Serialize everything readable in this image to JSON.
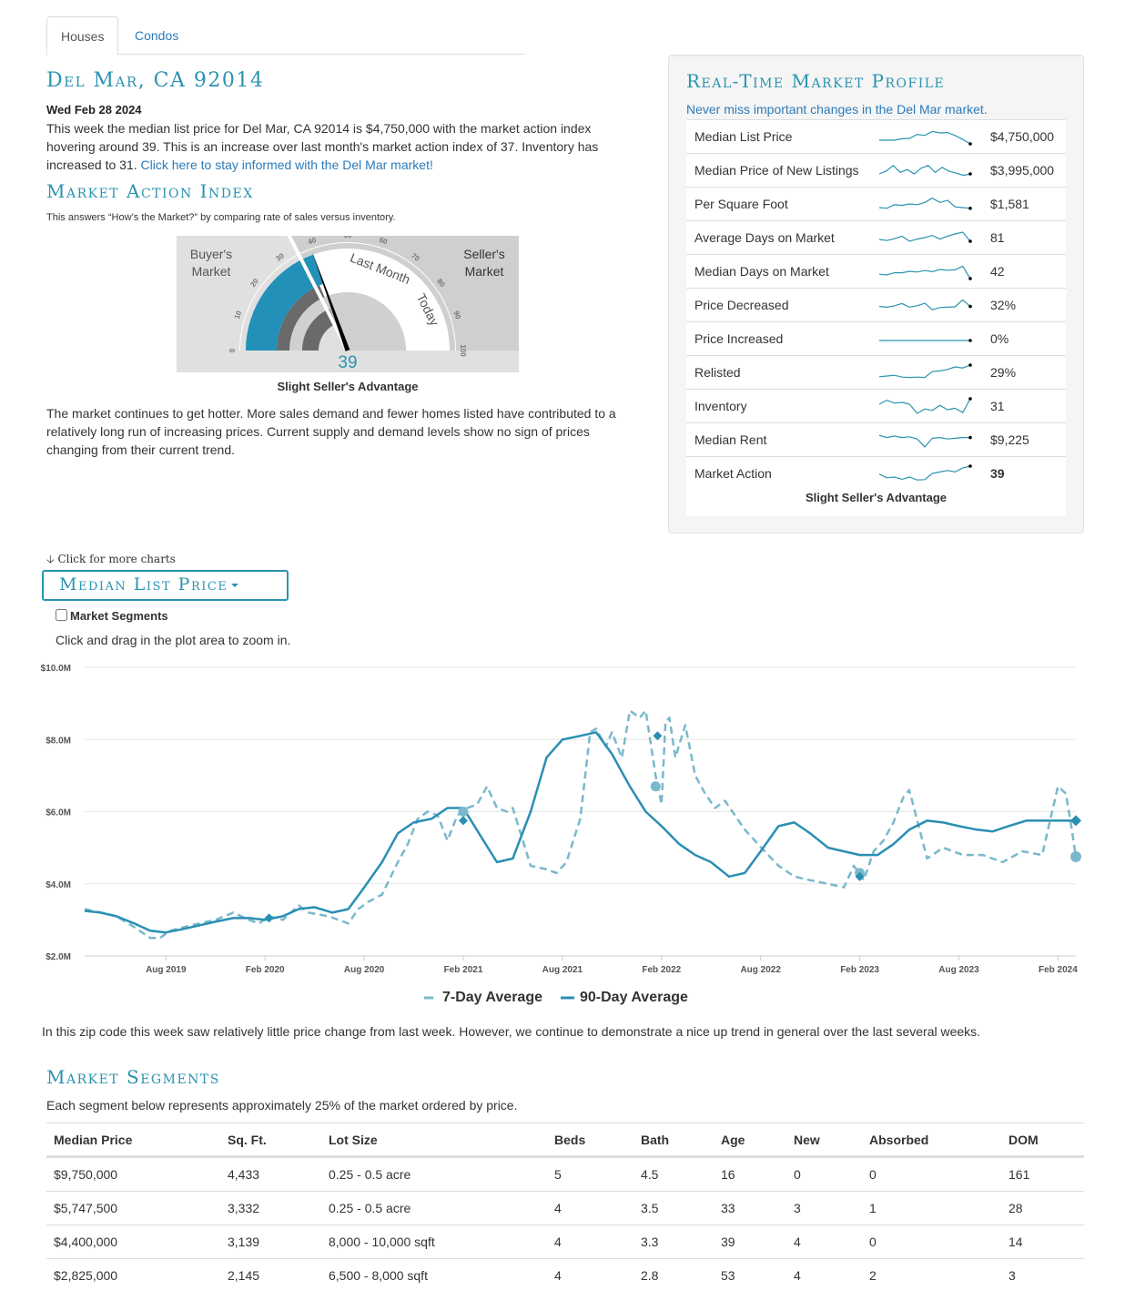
{
  "tabs": [
    {
      "label": "Houses",
      "active": true
    },
    {
      "label": "Condos",
      "active": false
    }
  ],
  "header": {
    "title": "Del Mar, CA 92014",
    "date": "Wed Feb 28 2024",
    "summary": "This week the median list price for Del Mar, CA 92014 is $4,750,000 with the market action index hovering around 39. This is an increase over last month's market action index of 37. Inventory has increased to 31. ",
    "summary_link": "Click here to stay informed with the Del Mar market!"
  },
  "market_action": {
    "title": "Market Action Index",
    "subtitle": "This answers “How’s the Market?” by comparing rate of sales versus inventory.",
    "buyers_label_1": "Buyer's",
    "buyers_label_2": "Market",
    "sellers_label_1": "Seller's",
    "sellers_label_2": "Market",
    "last_month_label": "Last Month",
    "today_label": "Today",
    "ticks": [
      "0",
      "10",
      "20",
      "30",
      "40",
      "50",
      "60",
      "70",
      "80",
      "90",
      "100"
    ],
    "value": 39,
    "value_label": "39",
    "last_month_value": 37,
    "caption": "Slight Seller's Advantage",
    "analysis": "The market continues to get hotter. More sales demand and fewer homes listed have contributed to a relatively long run of increasing prices. Current supply and demand levels show no sign of prices changing from their current trend."
  },
  "profile": {
    "title": "Real-Time Market Profile",
    "link": "Never miss important changes in the Del Mar market.",
    "rows": [
      {
        "label": "Median List Price",
        "value": "$4,750,000",
        "spark": [
          3,
          3,
          3,
          2.6,
          2.5,
          1.4,
          1.7,
          0.6,
          1,
          0.9,
          1.7,
          2.8,
          4
        ]
      },
      {
        "label": "Median Price of New Listings",
        "value": "$3,995,000",
        "spark": [
          3,
          2.2,
          0.7,
          2.6,
          1.8,
          3,
          1.4,
          0.7,
          2.6,
          1.2,
          2.3,
          2.8,
          3.4,
          3
        ]
      },
      {
        "label": "Per Square Foot",
        "value": "$1,581",
        "spark": [
          3,
          3.2,
          2.2,
          2.4,
          2,
          2.2,
          1.6,
          0.4,
          1.6,
          1,
          2.8,
          3,
          3.2
        ]
      },
      {
        "label": "Average Days on Market",
        "value": "81",
        "spark": [
          2.5,
          2.8,
          2.3,
          1.6,
          3,
          2.4,
          2,
          1.4,
          2.4,
          1.6,
          1,
          0.5,
          3
        ]
      },
      {
        "label": "Median Days on Market",
        "value": "42",
        "spark": [
          2.8,
          3,
          2.4,
          2.4,
          2,
          2.2,
          1.8,
          2.1,
          1.5,
          1.7,
          1.6,
          0.6,
          4
        ]
      },
      {
        "label": "Price Decreased",
        "value": "32%",
        "spark": [
          2.4,
          2.6,
          2.2,
          1.6,
          2.6,
          2.2,
          1.5,
          3.3,
          2.7,
          2.6,
          2.5,
          0.6,
          2.4
        ]
      },
      {
        "label": "Price Increased",
        "value": "0%",
        "spark": [
          2.5,
          2.5,
          2.5,
          2.5,
          2.5,
          2.5,
          2.5,
          2.5,
          2.5,
          2.5,
          2.5,
          2.5,
          2.5
        ]
      },
      {
        "label": "Relisted",
        "value": "29%",
        "spark": [
          3.2,
          3,
          2.8,
          3.3,
          3.4,
          3.3,
          3.4,
          1.8,
          1.6,
          1.2,
          0.5,
          0.8,
          0
        ]
      },
      {
        "label": "Inventory",
        "value": "31",
        "spark": [
          1.5,
          0.4,
          1.2,
          1,
          1.5,
          4,
          2.8,
          3.2,
          1.8,
          3,
          2.6,
          3.8,
          0
        ]
      },
      {
        "label": "Median Rent",
        "value": "$9,225",
        "spark": [
          0.8,
          1.4,
          1,
          1.4,
          1.2,
          1.8,
          4,
          1.6,
          1.4,
          1.8,
          1.6,
          1.4,
          1.4
        ]
      },
      {
        "label": "Market Action",
        "value": "39",
        "spark": [
          2.2,
          3.2,
          3,
          3.6,
          3,
          3.8,
          3.7,
          2,
          1.6,
          1.2,
          1.6,
          0.5,
          0
        ]
      }
    ],
    "caption": "Slight Seller's Advantage"
  },
  "chart_section": {
    "more_label": "Click for more charts",
    "selector_label": "Median List Price",
    "segments_toggle_label": "Market Segments",
    "zoom_hint": "Click and drag in the plot area to zoom in.",
    "note": "In this zip code this week saw relatively little price change from last week. However, we continue to demonstrate a nice up trend in general over the last several weeks."
  },
  "chart_data": {
    "type": "line",
    "ylim": [
      2,
      10
    ],
    "y_ticks": [
      "$2.0M",
      "$4.0M",
      "$6.0M",
      "$8.0M",
      "$10.0M"
    ],
    "y_tick_values": [
      2,
      4,
      6,
      8,
      10
    ],
    "x_ticks": [
      "Aug 2019",
      "Feb 2020",
      "Aug 2020",
      "Feb 2021",
      "Aug 2021",
      "Feb 2022",
      "Aug 2022",
      "Feb 2023",
      "Aug 2023",
      "Feb 2024"
    ],
    "x_tick_positions": [
      2019.58,
      2020.08,
      2020.58,
      2021.08,
      2021.58,
      2022.08,
      2022.58,
      2023.08,
      2023.58,
      2024.08
    ],
    "x_range": [
      2019.17,
      2024.17
    ],
    "series": [
      {
        "name": "7-Day Average",
        "style": "dashed",
        "color": "#7ab8cc",
        "x": [
          2019.17,
          2019.25,
          2019.33,
          2019.42,
          2019.5,
          2019.55,
          2019.6,
          2019.67,
          2019.75,
          2019.83,
          2019.92,
          2020.0,
          2020.05,
          2020.1,
          2020.17,
          2020.25,
          2020.3,
          2020.4,
          2020.5,
          2020.55,
          2020.6,
          2020.67,
          2020.75,
          2020.8,
          2020.85,
          2020.9,
          2020.95,
          2021.0,
          2021.05,
          2021.1,
          2021.15,
          2021.2,
          2021.25,
          2021.3,
          2021.33,
          2021.42,
          2021.5,
          2021.55,
          2021.6,
          2021.67,
          2021.72,
          2021.75,
          2021.8,
          2021.83,
          2021.88,
          2021.92,
          2021.97,
          2022.0,
          2022.05,
          2022.08,
          2022.1,
          2022.12,
          2022.15,
          2022.2,
          2022.25,
          2022.3,
          2022.35,
          2022.4,
          2022.5,
          2022.6,
          2022.67,
          2022.75,
          2022.83,
          2022.92,
          2023.0,
          2023.05,
          2023.1,
          2023.15,
          2023.2,
          2023.25,
          2023.3,
          2023.33,
          2023.42,
          2023.5,
          2023.6,
          2023.7,
          2023.8,
          2023.9,
          2024.0,
          2024.05,
          2024.08,
          2024.12,
          2024.15,
          2024.17
        ],
        "values": [
          3.3,
          3.2,
          3.1,
          2.8,
          2.5,
          2.5,
          2.7,
          2.8,
          2.9,
          3.0,
          3.2,
          3.0,
          2.9,
          3.1,
          3.0,
          3.4,
          3.2,
          3.1,
          2.9,
          3.3,
          3.5,
          3.7,
          4.6,
          5.1,
          5.8,
          6.0,
          5.9,
          5.2,
          5.9,
          6.1,
          6.2,
          6.7,
          6.1,
          6.0,
          6.1,
          4.5,
          4.4,
          4.3,
          4.6,
          5.8,
          8.2,
          8.3,
          7.8,
          8.2,
          7.5,
          8.8,
          8.6,
          8.8,
          7.0,
          6.2,
          8.5,
          8.6,
          7.5,
          8.4,
          7.0,
          6.5,
          6.1,
          6.3,
          5.5,
          4.9,
          4.5,
          4.2,
          4.1,
          4.0,
          3.9,
          4.5,
          4.1,
          4.9,
          5.2,
          5.7,
          6.4,
          6.6,
          4.7,
          5.0,
          4.8,
          4.8,
          4.6,
          4.9,
          4.8,
          6.0,
          6.7,
          6.5,
          5.5,
          4.75
        ]
      },
      {
        "name": "90-Day Average",
        "style": "solid",
        "color": "#2a8fb3",
        "x": [
          2019.17,
          2019.25,
          2019.33,
          2019.42,
          2019.5,
          2019.58,
          2019.67,
          2019.75,
          2019.83,
          2019.92,
          2020.0,
          2020.08,
          2020.17,
          2020.25,
          2020.33,
          2020.42,
          2020.5,
          2020.58,
          2020.67,
          2020.75,
          2020.83,
          2020.92,
          2021.0,
          2021.08,
          2021.17,
          2021.25,
          2021.33,
          2021.42,
          2021.5,
          2021.58,
          2021.67,
          2021.75,
          2021.83,
          2021.92,
          2022.0,
          2022.08,
          2022.17,
          2022.25,
          2022.33,
          2022.42,
          2022.5,
          2022.58,
          2022.67,
          2022.75,
          2022.83,
          2022.92,
          2023.0,
          2023.08,
          2023.17,
          2023.25,
          2023.33,
          2023.42,
          2023.5,
          2023.58,
          2023.67,
          2023.75,
          2023.83,
          2023.92,
          2024.0,
          2024.08,
          2024.17
        ],
        "values": [
          3.25,
          3.2,
          3.1,
          2.9,
          2.7,
          2.65,
          2.75,
          2.85,
          2.95,
          3.05,
          3.05,
          3.0,
          3.1,
          3.3,
          3.35,
          3.2,
          3.3,
          3.9,
          4.6,
          5.4,
          5.7,
          5.8,
          6.1,
          6.1,
          5.3,
          4.6,
          4.7,
          6.0,
          7.5,
          8.0,
          8.1,
          8.2,
          7.6,
          6.7,
          6.0,
          5.6,
          5.1,
          4.8,
          4.6,
          4.2,
          4.3,
          4.9,
          5.6,
          5.7,
          5.4,
          5.0,
          4.9,
          4.8,
          4.8,
          5.1,
          5.5,
          5.75,
          5.7,
          5.6,
          5.5,
          5.45,
          5.6,
          5.75,
          5.75,
          5.75,
          5.75
        ]
      }
    ],
    "legend": [
      "7-Day Average",
      "90-Day Average"
    ],
    "grid": true,
    "legend_position": "bottom-center"
  },
  "segments": {
    "title": "Market Segments",
    "subtitle": "Each segment below represents approximately 25% of the market ordered by price.",
    "columns": [
      "Median Price",
      "Sq. Ft.",
      "Lot Size",
      "Beds",
      "Bath",
      "Age",
      "New",
      "Absorbed",
      "DOM"
    ],
    "rows": [
      [
        "$9,750,000",
        "4,433",
        "0.25 - 0.5 acre",
        "5",
        "4.5",
        "16",
        "0",
        "0",
        "161"
      ],
      [
        "$5,747,500",
        "3,332",
        "0.25 - 0.5 acre",
        "4",
        "3.5",
        "33",
        "3",
        "1",
        "28"
      ],
      [
        "$4,400,000",
        "3,139",
        "8,000 - 10,000 sqft",
        "4",
        "3.3",
        "39",
        "4",
        "0",
        "14"
      ],
      [
        "$2,825,000",
        "2,145",
        "6,500 - 8,000 sqft",
        "4",
        "2.8",
        "53",
        "4",
        "2",
        "3"
      ]
    ]
  },
  "colors": {
    "accent": "#2a93b0",
    "link": "#2b7bb9",
    "gauge_fill": "#2390b8",
    "gauge_dark": "#6a6a6a"
  }
}
